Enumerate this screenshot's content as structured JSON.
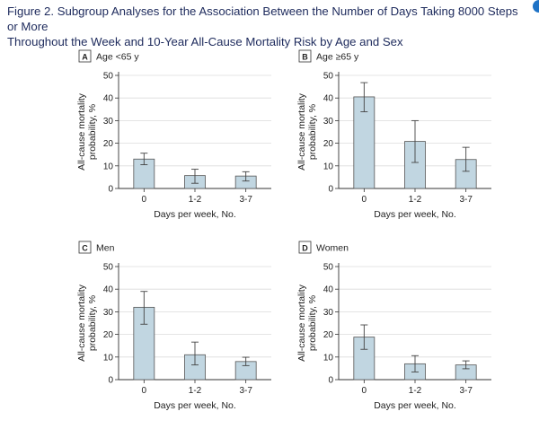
{
  "figure_title_line1": "Figure 2. Subgroup Analyses for the Association Between the Number of Days Taking 8000 Steps or More",
  "figure_title_line2": "Throughout the Week and 10-Year All-Cause Mortality Risk by Age and Sex",
  "colors": {
    "bar_fill": "#c1d6e1",
    "bar_stroke": "#555555",
    "axis": "#333333",
    "grid": "#dcdcdc",
    "title": "#1d2a5c"
  },
  "chart_data": [
    {
      "type": "bar",
      "letter": "A",
      "title": "Age <65 y",
      "categories": [
        "0",
        "1-2",
        "3-7"
      ],
      "values": [
        13,
        5.7,
        5.5
      ],
      "ci_low": [
        10.5,
        2.3,
        3.3
      ],
      "ci_high": [
        15.6,
        8.5,
        7.4
      ],
      "xlabel": "Days per week, No.",
      "ylabel": [
        "All-cause mortality",
        "probability, %"
      ],
      "ylim": [
        0,
        50
      ],
      "yticks": [
        0,
        10,
        20,
        30,
        40,
        50
      ],
      "grid": true
    },
    {
      "type": "bar",
      "letter": "B",
      "title": "Age ≥65 y",
      "categories": [
        "0",
        "1-2",
        "3-7"
      ],
      "values": [
        40.5,
        20.8,
        12.8
      ],
      "ci_low": [
        33.9,
        11.5,
        7.6
      ],
      "ci_high": [
        46.8,
        30,
        18.2
      ],
      "xlabel": "Days per week, No.",
      "ylabel": [
        "All-cause mortality",
        "probability, %"
      ],
      "ylim": [
        0,
        50
      ],
      "yticks": [
        0,
        10,
        20,
        30,
        40,
        50
      ],
      "grid": true
    },
    {
      "type": "bar",
      "letter": "C",
      "title": "Men",
      "categories": [
        "0",
        "1-2",
        "3-7"
      ],
      "values": [
        32,
        11,
        8
      ],
      "ci_low": [
        24.5,
        6.5,
        6.2
      ],
      "ci_high": [
        39,
        16.6,
        9.9
      ],
      "xlabel": "Days per week, No.",
      "ylabel": [
        "All-cause mortality",
        "probability, %"
      ],
      "ylim": [
        0,
        50
      ],
      "yticks": [
        0,
        10,
        20,
        30,
        40,
        50
      ],
      "grid": true
    },
    {
      "type": "bar",
      "letter": "D",
      "title": "Women",
      "categories": [
        "0",
        "1-2",
        "3-7"
      ],
      "values": [
        18.8,
        7,
        6.5
      ],
      "ci_low": [
        13.4,
        3.4,
        4.8
      ],
      "ci_high": [
        24.2,
        10.6,
        8.3
      ],
      "xlabel": "Days per week, No.",
      "ylabel": [
        "All-cause mortality",
        "probability, %"
      ],
      "ylim": [
        0,
        50
      ],
      "yticks": [
        0,
        10,
        20,
        30,
        40,
        50
      ],
      "grid": true
    }
  ]
}
